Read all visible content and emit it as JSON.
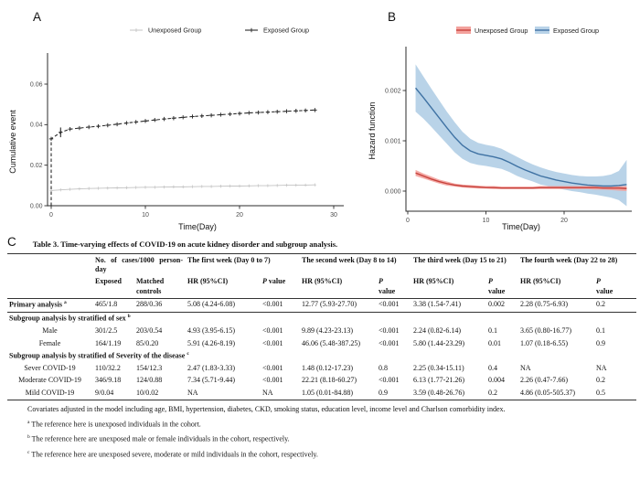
{
  "panel_a": {
    "label": "A",
    "ylabel": "Cumulative event",
    "xlabel": "Time(Day)",
    "legend": [
      "Unexposed Group",
      "Exposed Group"
    ]
  },
  "panel_b": {
    "label": "B",
    "ylabel": "Hazard function",
    "xlabel": "Time(Day)",
    "legend": [
      "Unexposed Group",
      "Exposed Group"
    ]
  },
  "chart_data": [
    {
      "id": "cumulative-event",
      "type": "line",
      "title": "",
      "xlabel": "Time(Day)",
      "ylabel": "Cumulative event",
      "xlim": [
        -1,
        31.5
      ],
      "ylim": [
        0,
        0.075
      ],
      "xticks": [
        0,
        10,
        20,
        30
      ],
      "yticks": [
        0,
        0.02,
        0.04,
        0.06
      ],
      "ytick_labels": [
        "0.00",
        "0.02",
        "0.04",
        "0.06"
      ],
      "legend_position": "top",
      "x": [
        0,
        1,
        2,
        3,
        4,
        5,
        6,
        7,
        8,
        9,
        10,
        11,
        12,
        13,
        14,
        15,
        16,
        17,
        18,
        19,
        20,
        21,
        22,
        23,
        24,
        25,
        26,
        27,
        28
      ],
      "series": [
        {
          "name": "Unexposed Group",
          "color": "#c3c3c3",
          "dash": "",
          "marker": "plus",
          "values": [
            0.0075,
            0.0078,
            0.0081,
            0.0083,
            0.0085,
            0.0086,
            0.0087,
            0.0088,
            0.0089,
            0.009,
            0.0091,
            0.0091,
            0.0092,
            0.0093,
            0.0093,
            0.0094,
            0.0095,
            0.0095,
            0.0096,
            0.0097,
            0.0097,
            0.0098,
            0.0099,
            0.0099,
            0.01,
            0.0101,
            0.0101,
            0.0102,
            0.0103
          ]
        },
        {
          "name": "Exposed Group",
          "color": "#2b2b2b",
          "dash": "3.5 2.5",
          "marker": "plus",
          "jump_from_zero": true,
          "values": [
            0.033,
            0.0362,
            0.0378,
            0.0383,
            0.0388,
            0.0392,
            0.0397,
            0.0402,
            0.0408,
            0.0413,
            0.0418,
            0.0423,
            0.0428,
            0.0432,
            0.0436,
            0.044,
            0.0443,
            0.0446,
            0.0449,
            0.0452,
            0.0455,
            0.0458,
            0.046,
            0.0462,
            0.0464,
            0.0466,
            0.0468,
            0.047,
            0.0472
          ],
          "error_bars": [
            {
              "x": 1,
              "lo": 0.0338,
              "hi": 0.0386
            }
          ]
        }
      ]
    },
    {
      "id": "hazard-function",
      "type": "line",
      "title": "",
      "xlabel": "Time(Day)",
      "ylabel": "Hazard function",
      "xlim": [
        0,
        29
      ],
      "ylim": [
        -0.0004,
        0.0027
      ],
      "xticks": [
        0,
        10,
        20
      ],
      "yticks": [
        0,
        0.001,
        0.002
      ],
      "ytick_labels": [
        "0.000",
        "0.001",
        "0.002"
      ],
      "legend_position": "top",
      "x": [
        1,
        2,
        3,
        4,
        5,
        6,
        7,
        8,
        9,
        10,
        11,
        12,
        13,
        14,
        15,
        16,
        17,
        18,
        19,
        20,
        21,
        22,
        23,
        24,
        25,
        26,
        27,
        28
      ],
      "series": [
        {
          "name": "Exposed Group",
          "color": "#3f72a3",
          "band_color": "#b9d3e8",
          "values": [
            0.00205,
            0.00186,
            0.00166,
            0.00146,
            0.00126,
            0.00107,
            0.00091,
            0.0008,
            0.00074,
            0.00071,
            0.00068,
            0.00064,
            0.00057,
            0.00049,
            0.00042,
            0.00036,
            0.0003,
            0.00026,
            0.00022,
            0.00019,
            0.00016,
            0.00014,
            0.00012,
            0.00011,
            0.0001,
            0.0001,
            0.00011,
            0.00013
          ],
          "band_upper": [
            0.00252,
            0.00228,
            0.00204,
            0.00181,
            0.00158,
            0.00137,
            0.00118,
            0.00104,
            0.00096,
            0.00092,
            0.00089,
            0.00084,
            0.00076,
            0.00068,
            0.0006,
            0.00053,
            0.00047,
            0.00042,
            0.00038,
            0.00035,
            0.00032,
            0.0003,
            0.00029,
            0.00029,
            0.0003,
            0.00033,
            0.0004,
            0.00062
          ],
          "band_lower": [
            0.00158,
            0.00144,
            0.00128,
            0.00111,
            0.00094,
            0.00077,
            0.00064,
            0.00056,
            0.00052,
            0.0005,
            0.00047,
            0.00044,
            0.00038,
            0.0003,
            0.00024,
            0.00019,
            0.00013,
            0.0001,
            6e-05,
            3e-05,
            0,
            -2e-05,
            -5e-05,
            -7e-05,
            -0.0001,
            -0.00013,
            -0.00018,
            -0.0003
          ]
        },
        {
          "name": "Unexposed Group",
          "color": "#c7423c",
          "band_color": "#f3a29d",
          "values": [
            0.00036,
            0.0003,
            0.00024,
            0.00019,
            0.00015,
            0.00012,
            0.0001,
            9e-05,
            8e-05,
            7e-05,
            7e-05,
            6e-05,
            6e-05,
            6e-05,
            6e-05,
            6e-05,
            7e-05,
            7e-05,
            7e-05,
            7e-05,
            7e-05,
            7e-05,
            7e-05,
            7e-05,
            6e-05,
            6e-05,
            6e-05,
            5e-05
          ],
          "band_upper": [
            0.00042,
            0.00035,
            0.00029,
            0.00023,
            0.00019,
            0.00015,
            0.00013,
            0.00012,
            0.00011,
            0.0001,
            0.0001,
            9e-05,
            9e-05,
            9e-05,
            9e-05,
            9e-05,
            0.0001,
            0.0001,
            0.0001,
            0.0001,
            0.0001,
            0.0001,
            0.0001,
            0.0001,
            0.0001,
            0.0001,
            0.0001,
            0.0001
          ],
          "band_lower": [
            0.0003,
            0.00025,
            0.0002,
            0.00015,
            0.00011,
            9e-05,
            7e-05,
            6e-05,
            5e-05,
            5e-05,
            4e-05,
            4e-05,
            4e-05,
            4e-05,
            4e-05,
            4e-05,
            4e-05,
            4e-05,
            4e-05,
            4e-05,
            4e-05,
            4e-05,
            4e-05,
            3e-05,
            3e-05,
            2e-05,
            1e-05,
            0
          ]
        }
      ]
    }
  ],
  "table": {
    "panel_label": "C",
    "title": "Table 3. Time-varying effects of COVID-19 on acute kidney disorder and subgroup analysis.",
    "col_groups": [
      {
        "label": "No. of cases/1000 person-day",
        "span": 2
      },
      {
        "label": "The first week (Day 0 to 7)",
        "span": 2
      },
      {
        "label": "The second week (Day 8 to 14)",
        "span": 2
      },
      {
        "label": "The third week (Day 15 to 21)",
        "span": 2
      },
      {
        "label": "The fourth week (Day 22 to 28)",
        "span": 2
      }
    ],
    "sub_headers": [
      "Exposed",
      "Matched\ncontrols",
      "HR (95%CI)",
      "P value",
      "HR (95%CI)",
      "P\nvalue",
      "HR (95%CI)",
      "P\nvalue",
      "HR (95%CI)",
      "P\nvalue"
    ],
    "rows": [
      {
        "type": "data",
        "bold": true,
        "indent": false,
        "sup": "a",
        "label": "Primary analysis",
        "rule_below": true,
        "cells": [
          "465/1.8",
          "288/0.36",
          "5.08 (4.24-6.08)",
          "<0.001",
          "12.77 (5.93-27.70)",
          "<0.001",
          "3.38 (1.54-7.41)",
          "0.002",
          "2.28 (0.75-6.93)",
          "0.2"
        ]
      },
      {
        "type": "section",
        "sup": "b",
        "label": "Subgroup analysis by stratified of sex"
      },
      {
        "type": "data",
        "bold": false,
        "indent": true,
        "sup": "",
        "label": "Male",
        "cells": [
          "301/2.5",
          "203/0.54",
          "4.93 (3.95-6.15)",
          "<0.001",
          "9.89 (4.23-23.13)",
          "<0.001",
          "2.24 (0.82-6.14)",
          "0.1",
          "3.65 (0.80-16.77)",
          "0.1"
        ]
      },
      {
        "type": "data",
        "bold": false,
        "indent": true,
        "sup": "",
        "label": "Female",
        "cells": [
          "164/1.19",
          "85/0.20",
          "5.91 (4.26-8.19)",
          "<0.001",
          "46.06 (5.48-387.25)",
          "<0.001",
          "5.80 (1.44-23.29)",
          "0.01",
          "1.07 (0.18-6.55)",
          "0.9"
        ]
      },
      {
        "type": "section",
        "sup": "c",
        "label": "Subgroup analysis by stratified of Severity of the disease"
      },
      {
        "type": "data",
        "bold": false,
        "indent": true,
        "sup": "",
        "label": "Sever COVID-19",
        "cells": [
          "110/32.2",
          "154/12.3",
          "2.47 (1.83-3.33)",
          "<0.001",
          "1.48 (0.12-17.23)",
          "0.8",
          "2.25 (0.34-15.11)",
          "0.4",
          "NA",
          "NA"
        ]
      },
      {
        "type": "data",
        "bold": false,
        "indent": true,
        "sup": "",
        "label": "Moderate COVID-19",
        "cells": [
          "346/9.18",
          "124/0.88",
          "7.34 (5.71-9.44)",
          "<0.001",
          "22.21 (8.18-60.27)",
          "<0.001",
          "6.13 (1.77-21.26)",
          "0.004",
          "2.26 (0.47-7.66)",
          "0.2"
        ]
      },
      {
        "type": "data",
        "bold": false,
        "indent": true,
        "sup": "",
        "label": "Mild COVID-19",
        "cells": [
          "9/0.04",
          "10/0.02",
          "NA",
          "NA",
          "1.05 (0.01-84.88)",
          "0.9",
          "3.59 (0.48-26.76)",
          "0.2",
          "4.86 (0.05-505.37)",
          "0.5"
        ]
      }
    ],
    "footnotes": [
      {
        "marker": "",
        "text": "Covariates adjusted in the model including age, BMI, hypertension, diabetes, CKD, smoking status, education level, income level and Charlson comorbidity index."
      },
      {
        "marker": "a",
        "text": "The reference here is unexposed individuals in the cohort."
      },
      {
        "marker": "b",
        "text": "The reference here are unexposed male or female individuals in the cohort, respectively."
      },
      {
        "marker": "c",
        "text": "The reference here are unexposed severe, moderate or mild individuals in the cohort, respectively."
      }
    ]
  }
}
